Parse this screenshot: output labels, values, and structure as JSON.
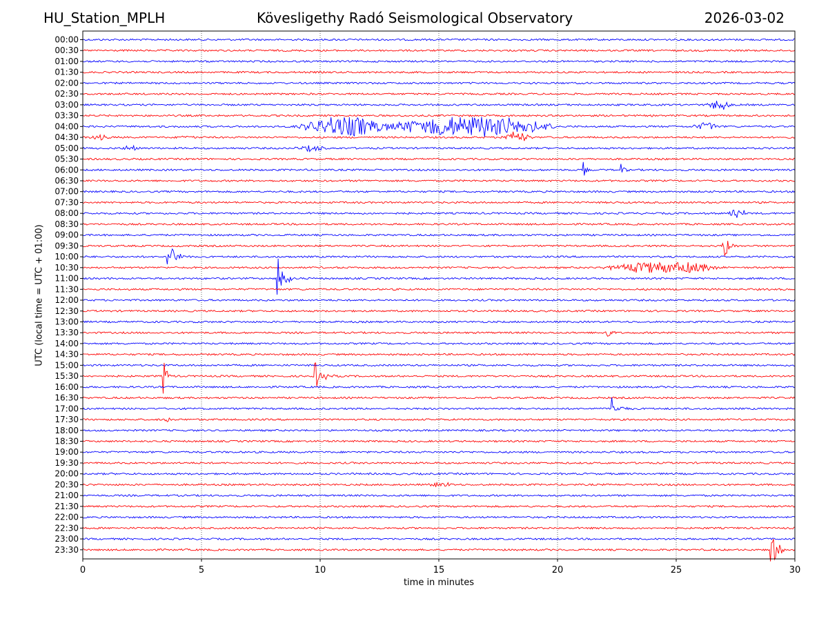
{
  "header": {
    "station": "HU_Station_MPLH",
    "observatory": "Kövesligethy Radó Seismological Observatory",
    "date": "2026-03-02"
  },
  "chart_data": {
    "type": "seismogram-helicorder",
    "xlabel": "time in minutes",
    "ylabel": "UTC (local time = UTC + 01:00)",
    "xlim": [
      0,
      30
    ],
    "x_ticks": [
      0,
      5,
      10,
      15,
      20,
      25,
      30
    ],
    "x_tick_labels": [
      "0",
      "5",
      "10",
      "15",
      "20",
      "25",
      "30"
    ],
    "vertical_gridlines_at_minutes": [
      5,
      10,
      15,
      20,
      25
    ],
    "trace_colors": [
      "#0000ff",
      "#ff0000"
    ],
    "traces": [
      "00:00",
      "00:30",
      "01:00",
      "01:30",
      "02:00",
      "02:30",
      "03:00",
      "03:30",
      "04:00",
      "04:30",
      "05:00",
      "05:30",
      "06:00",
      "06:30",
      "07:00",
      "07:30",
      "08:00",
      "08:30",
      "09:00",
      "09:30",
      "10:00",
      "10:30",
      "11:00",
      "11:30",
      "12:00",
      "12:30",
      "13:00",
      "13:30",
      "14:00",
      "14:30",
      "15:00",
      "15:30",
      "16:00",
      "16:30",
      "17:00",
      "17:30",
      "18:00",
      "18:30",
      "19:00",
      "19:30",
      "20:00",
      "20:30",
      "21:00",
      "21:30",
      "22:00",
      "22:30",
      "23:00",
      "23:30"
    ],
    "events": [
      {
        "trace": "03:00",
        "minute": 26.2,
        "duration": 1.2,
        "amplitude": 0.5,
        "kind": "burst"
      },
      {
        "trace": "04:00",
        "minute": 8.8,
        "duration": 4.5,
        "amplitude": 0.9,
        "kind": "burst"
      },
      {
        "trace": "04:00",
        "minute": 12.3,
        "duration": 8.0,
        "amplitude": 0.95,
        "kind": "burst"
      },
      {
        "trace": "04:00",
        "minute": 25.6,
        "duration": 1.3,
        "amplitude": 0.35,
        "kind": "burst"
      },
      {
        "trace": "04:30",
        "minute": 0.2,
        "duration": 1.0,
        "amplitude": 0.2,
        "kind": "burst"
      },
      {
        "trace": "04:30",
        "minute": 4.0,
        "duration": 0.8,
        "amplitude": 0.15,
        "kind": "burst"
      },
      {
        "trace": "04:30",
        "minute": 17.6,
        "duration": 1.4,
        "amplitude": 0.5,
        "kind": "burst"
      },
      {
        "trace": "05:00",
        "minute": 1.7,
        "duration": 0.8,
        "amplitude": 0.25,
        "kind": "burst"
      },
      {
        "trace": "05:00",
        "minute": 8.8,
        "duration": 1.6,
        "amplitude": 0.25,
        "kind": "burst"
      },
      {
        "trace": "06:00",
        "minute": 21.1,
        "duration": 0.3,
        "amplitude": 0.8,
        "kind": "spike"
      },
      {
        "trace": "06:00",
        "minute": 22.7,
        "duration": 0.4,
        "amplitude": 0.6,
        "kind": "spike"
      },
      {
        "trace": "08:00",
        "minute": 27.0,
        "duration": 1.0,
        "amplitude": 0.5,
        "kind": "burst"
      },
      {
        "trace": "09:30",
        "minute": 27.0,
        "duration": 0.6,
        "amplitude": 1.8,
        "kind": "spike"
      },
      {
        "trace": "10:00",
        "minute": 3.6,
        "duration": 0.7,
        "amplitude": 2.2,
        "kind": "spike"
      },
      {
        "trace": "10:00",
        "minute": 4.0,
        "duration": 0.4,
        "amplitude": 0.9,
        "kind": "spike"
      },
      {
        "trace": "10:30",
        "minute": 21.7,
        "duration": 5.5,
        "amplitude": 0.55,
        "kind": "burst"
      },
      {
        "trace": "11:00",
        "minute": 8.2,
        "duration": 0.6,
        "amplitude": 2.6,
        "kind": "spike"
      },
      {
        "trace": "11:00",
        "minute": 8.6,
        "duration": 0.4,
        "amplitude": 1.2,
        "kind": "spike"
      },
      {
        "trace": "13:30",
        "minute": 22.0,
        "duration": 0.5,
        "amplitude": 1.6,
        "kind": "spike"
      },
      {
        "trace": "15:30",
        "minute": 3.4,
        "duration": 0.5,
        "amplitude": 1.6,
        "kind": "spike"
      },
      {
        "trace": "15:30",
        "minute": 9.8,
        "duration": 1.0,
        "amplitude": 1.4,
        "kind": "spike"
      },
      {
        "trace": "17:00",
        "minute": 22.3,
        "duration": 0.9,
        "amplitude": 1.2,
        "kind": "spike"
      },
      {
        "trace": "17:30",
        "minute": 3.3,
        "duration": 0.5,
        "amplitude": 0.3,
        "kind": "burst"
      },
      {
        "trace": "20:30",
        "minute": 14.5,
        "duration": 1.2,
        "amplitude": 0.2,
        "kind": "burst"
      },
      {
        "trace": "23:30",
        "minute": 29.0,
        "duration": 1.0,
        "amplitude": 1.6,
        "kind": "spike"
      }
    ]
  }
}
